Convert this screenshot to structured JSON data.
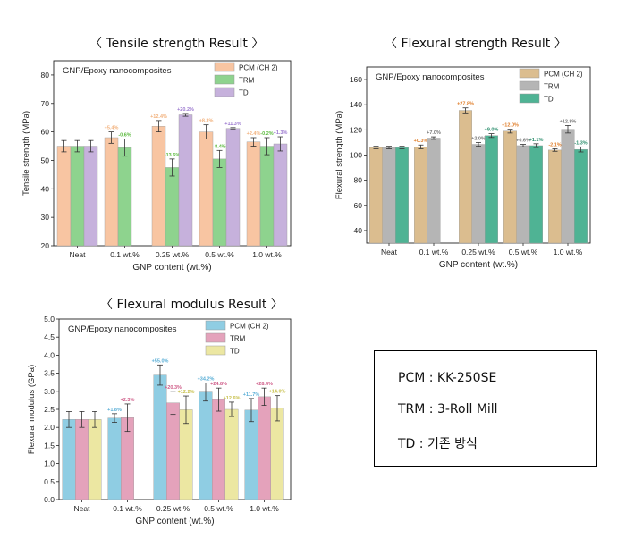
{
  "titles": {
    "tensile": "〈 Tensile strength Result 〉",
    "flexural_strength": "〈 Flexural strength Result 〉",
    "flexural_modulus": "〈 Flexural modulus Result 〉"
  },
  "abbreviations": {
    "pcm": "PCM : KK-250SE",
    "trm": "TRM : 3-Roll Mill",
    "td": "TD : 기존 방식"
  },
  "colors": {
    "tensile": [
      "#f8c5a2",
      "#8ed38e",
      "#c6b1dc"
    ],
    "flexural_strength": [
      "#dbbd8f",
      "#b5b5b5",
      "#4fb394"
    ],
    "flexural_modulus": [
      "#8fcde3",
      "#e4a2bb",
      "#ece7a2"
    ],
    "tensile_labels": [
      "#f2b27e",
      "#5cba3f",
      "#9b78cf"
    ],
    "flexural_strength_labels": [
      "#e07e2a",
      "#777777",
      "#2d8f6e"
    ],
    "flexural_modulus_labels": [
      "#59aed6",
      "#cf5c88",
      "#c7bf49"
    ]
  },
  "chart_data": [
    {
      "type": "bar",
      "name": "tensile",
      "inner_title": "GNP/Epoxy nanocomposites",
      "xlabel": "GNP content (wt.%)",
      "ylabel": "Tensile strength (MPa)",
      "ylim": [
        20,
        85
      ],
      "yticks": [
        20,
        30,
        40,
        50,
        60,
        70,
        80
      ],
      "categories": [
        "Neat",
        "0.1 wt.%",
        "0.25 wt.%",
        "0.5 wt.%",
        "1.0 wt.%"
      ],
      "series": [
        {
          "name": "PCM (CH 2)",
          "values": [
            55,
            58,
            62,
            60,
            56.5
          ],
          "errors": [
            2,
            2,
            2,
            2.5,
            1.5
          ],
          "labels": [
            "",
            "+5.4%",
            "+12.4%",
            "+8.3%",
            "+2.4%"
          ]
        },
        {
          "name": "TRM",
          "values": [
            55,
            54.5,
            47.5,
            50.5,
            55
          ],
          "errors": [
            2,
            3,
            3,
            3,
            3
          ],
          "labels": [
            "",
            "-0.6%",
            "-13.6%",
            "-8.4%",
            "-0.2%"
          ]
        },
        {
          "name": "TD",
          "values": [
            55,
            null,
            66,
            61.2,
            55.8
          ],
          "errors": [
            2,
            0,
            0.5,
            0.3,
            2.5
          ],
          "labels": [
            "",
            "",
            "+20.2%",
            "+11.3%",
            "+1.3%"
          ]
        }
      ]
    },
    {
      "type": "bar",
      "name": "flexural_strength",
      "inner_title": "GNP/Epoxy nanocomposites",
      "xlabel": "GNP content (wt.%)",
      "ylabel": "Flexural strength (MPa)",
      "ylim": [
        30,
        170
      ],
      "yticks": [
        40,
        60,
        80,
        100,
        120,
        140,
        160
      ],
      "categories": [
        "Neat",
        "0.1 wt.%",
        "0.25 wt.%",
        "0.5 wt.%",
        "1.0 wt.%"
      ],
      "series": [
        {
          "name": "PCM (CH 2)",
          "values": [
            106,
            106.5,
            135.5,
            119,
            104
          ],
          "errors": [
            1,
            1.5,
            2,
            1.5,
            1
          ],
          "labels": [
            "",
            "+0.3%",
            "+27.8%",
            "+12.0%",
            "-2.1%"
          ]
        },
        {
          "name": "TRM",
          "values": [
            106,
            113.5,
            108.5,
            107.5,
            120.5
          ],
          "errors": [
            1,
            1,
            1.5,
            1,
            3
          ],
          "labels": [
            "",
            "+7.0%",
            "+2.0%",
            "+0.6%",
            "+12.8%"
          ]
        },
        {
          "name": "TD",
          "values": [
            106,
            null,
            115.5,
            107.5,
            104.5
          ],
          "errors": [
            1,
            0,
            1.5,
            1.5,
            2
          ],
          "labels": [
            "",
            "",
            "+9.0%",
            "+1.1%",
            "-1.3%"
          ]
        }
      ]
    },
    {
      "type": "bar",
      "name": "flexural_modulus",
      "inner_title": "GNP/Epoxy nanocomposites",
      "xlabel": "GNP content (wt.%)",
      "ylabel": "Flexural modulus (GPa)",
      "ylim": [
        0,
        5
      ],
      "yticks": [
        0.0,
        0.5,
        1.0,
        1.5,
        2.0,
        2.5,
        3.0,
        3.5,
        4.0,
        4.5,
        5.0
      ],
      "categories": [
        "Neat",
        "0.1 wt.%",
        "0.25 wt.%",
        "0.5 wt.%",
        "1.0 wt.%"
      ],
      "series": [
        {
          "name": "PCM (CH 2)",
          "values": [
            2.22,
            2.26,
            3.45,
            2.98,
            2.48
          ],
          "errors": [
            0.22,
            0.12,
            0.28,
            0.25,
            0.32
          ],
          "labels": [
            "",
            "+1.8%",
            "+55.0%",
            "+34.2%",
            "+11.7%"
          ]
        },
        {
          "name": "TRM",
          "values": [
            2.22,
            2.27,
            2.68,
            2.77,
            2.85
          ],
          "errors": [
            0.22,
            0.38,
            0.32,
            0.32,
            0.24
          ],
          "labels": [
            "",
            "+2.3%",
            "+20.3%",
            "+24.8%",
            "+28.4%"
          ]
        },
        {
          "name": "TD",
          "values": [
            2.22,
            null,
            2.49,
            2.5,
            2.53
          ],
          "errors": [
            0.22,
            0,
            0.38,
            0.2,
            0.35
          ],
          "labels": [
            "",
            "",
            "+12.2%",
            "+12.6%",
            "+14.0%"
          ]
        }
      ]
    }
  ]
}
